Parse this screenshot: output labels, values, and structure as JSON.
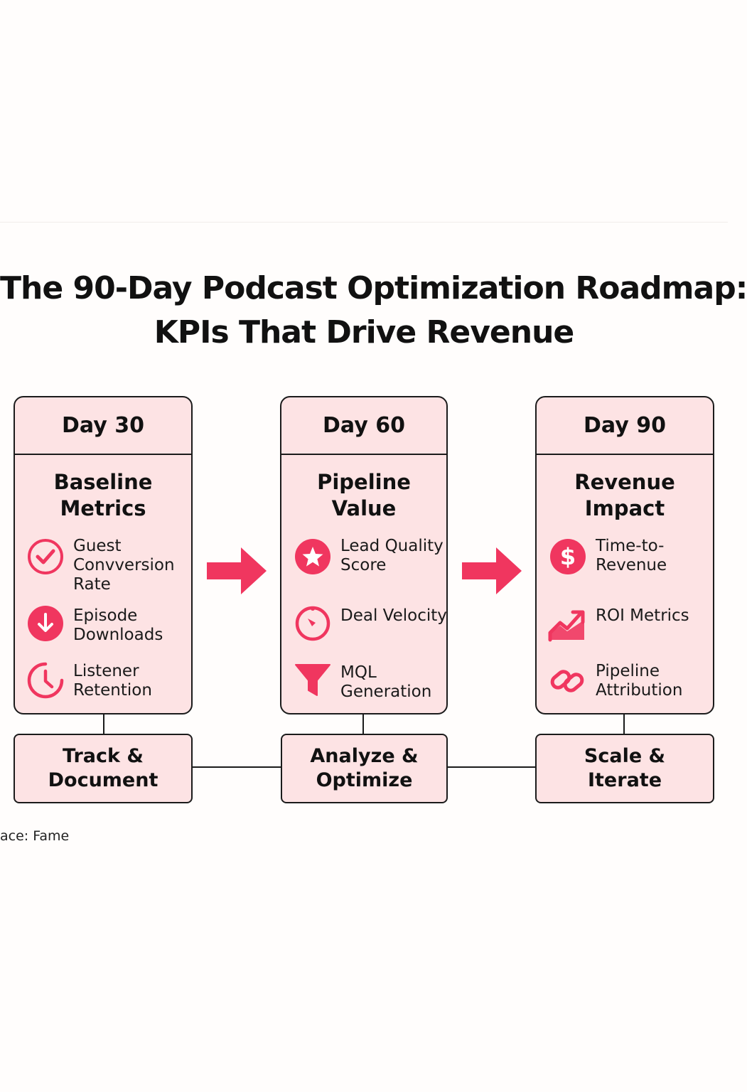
{
  "title": {
    "line1": "The 90-Day Podcast Optimization Roadmap:",
    "line2": "KPIs That Drive Revenue"
  },
  "accent_color": "#f0365f",
  "stages": [
    {
      "day": "Day 30",
      "heading": "Baseline\nMetrics",
      "kpis": [
        {
          "label": "Guest\nConvversion\nRate",
          "icon": "check-circle-icon"
        },
        {
          "label": "Episode\nDownloads",
          "icon": "download-icon"
        },
        {
          "label": "Listener\nRetention",
          "icon": "clock-icon"
        }
      ],
      "step": "Track &\nDocument"
    },
    {
      "day": "Day 60",
      "heading": "Pipeline\nValue",
      "kpis": [
        {
          "label": "Lead Quality\nScore",
          "icon": "star-icon"
        },
        {
          "label": "Deal Velocity",
          "icon": "gauge-icon"
        },
        {
          "label": "MQL\nGeneration",
          "icon": "funnel-icon"
        }
      ],
      "step": "Analyze &\nOptimize"
    },
    {
      "day": "Day 90",
      "heading": "Revenue\nImpact",
      "kpis": [
        {
          "label": "Time-to-\nRevenue",
          "icon": "dollar-icon"
        },
        {
          "label": "ROI Metrics",
          "icon": "trend-up-icon"
        },
        {
          "label": "Pipeline\nAttribution",
          "icon": "link-icon"
        }
      ],
      "step": "Scale &\nIterate"
    }
  ],
  "source": "ace: Fame"
}
